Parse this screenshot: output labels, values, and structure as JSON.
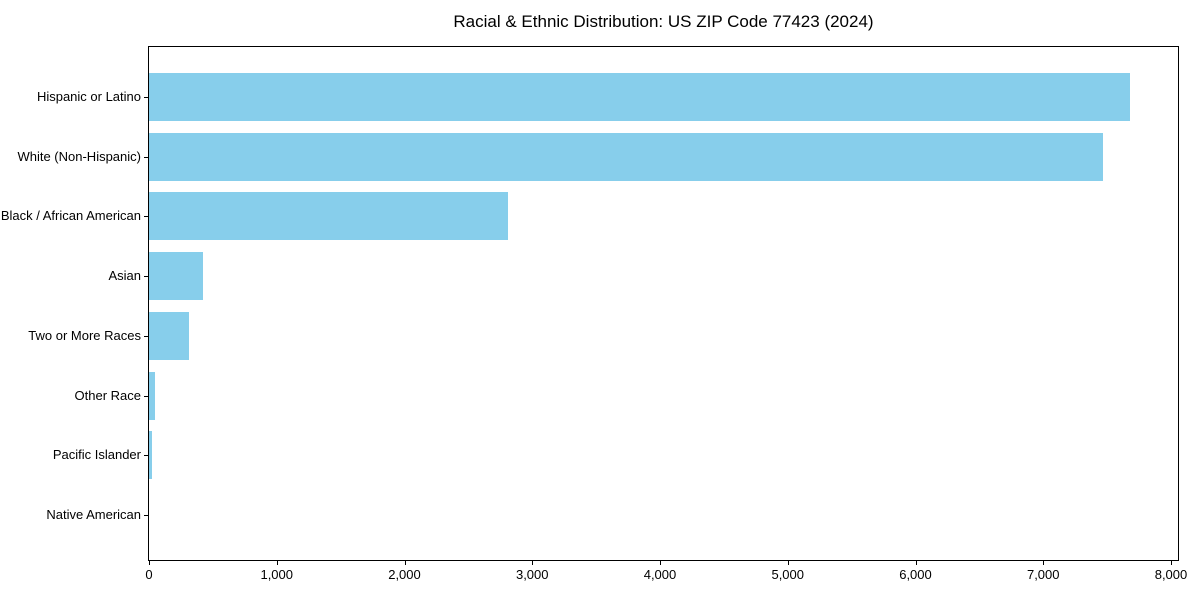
{
  "chart_data": {
    "type": "bar",
    "orientation": "horizontal",
    "title": "Racial & Ethnic Distribution: US ZIP Code 77423 (2024)",
    "categories": [
      "Hispanic or Latino",
      "White (Non-Hispanic)",
      "Black / African American",
      "Asian",
      "Two or More Races",
      "Other Race",
      "Pacific Islander",
      "Native American"
    ],
    "values": [
      7680,
      7465,
      2810,
      425,
      315,
      47,
      23,
      0
    ],
    "xlabel": "",
    "ylabel": "",
    "xlim": [
      0,
      8055
    ],
    "xticks": [
      0,
      1000,
      2000,
      3000,
      4000,
      5000,
      6000,
      7000,
      8000
    ],
    "xtick_labels": [
      "0",
      "1,000",
      "2,000",
      "3,000",
      "4,000",
      "5,000",
      "6,000",
      "7,000",
      "8,000"
    ],
    "bar_color": "#87CEEB",
    "spine_color": "#000000",
    "text_color": "#000000",
    "grid": false,
    "legend_position": "none"
  }
}
